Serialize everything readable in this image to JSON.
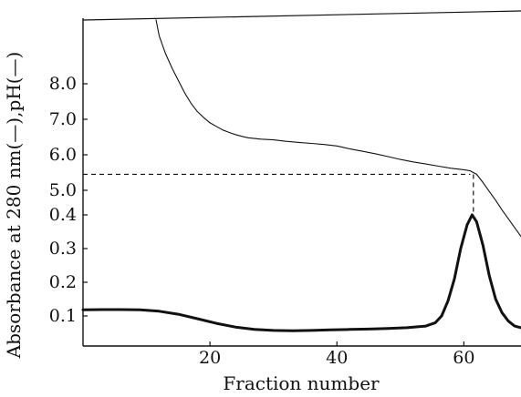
{
  "chart_data": {
    "type": "line",
    "xlabel": "Fraction number",
    "ylabel": "Absorbance at 280 nm(—),pH(—)",
    "xlim": [
      0,
      69
    ],
    "x_ticks": [
      20,
      40,
      60
    ],
    "ph_axis": {
      "ticks": [
        5.0,
        6.0,
        7.0,
        8.0
      ],
      "tick_labels": [
        "5.0",
        "6.0",
        "7.0",
        "8.0"
      ]
    },
    "absorbance_axis": {
      "ticks": [
        0.1,
        0.2,
        0.3,
        0.4
      ],
      "tick_labels": [
        "0.1",
        "0.2",
        "0.3",
        "0.4"
      ]
    },
    "series": [
      {
        "key": "ph",
        "axis": "ph",
        "style": "thin",
        "x": [
          11.5,
          12,
          13,
          14,
          15,
          16,
          17,
          18,
          19,
          20,
          21,
          22,
          23,
          24,
          25,
          26,
          28,
          30,
          32,
          34,
          36,
          38,
          40,
          42,
          44,
          46,
          48,
          50,
          52,
          54,
          56,
          58,
          60,
          61,
          62,
          63,
          64,
          65,
          66,
          67,
          68,
          69
        ],
        "y": [
          9.8,
          9.35,
          8.85,
          8.45,
          8.1,
          7.75,
          7.45,
          7.22,
          7.05,
          6.9,
          6.8,
          6.7,
          6.63,
          6.57,
          6.52,
          6.48,
          6.44,
          6.42,
          6.38,
          6.35,
          6.32,
          6.29,
          6.25,
          6.17,
          6.1,
          6.03,
          5.95,
          5.87,
          5.8,
          5.74,
          5.68,
          5.62,
          5.58,
          5.55,
          5.45,
          5.22,
          4.97,
          4.72,
          4.45,
          4.2,
          3.95,
          3.7
        ]
      },
      {
        "key": "absorbance",
        "axis": "absorbance",
        "style": "thick",
        "x": [
          0,
          3,
          6,
          9,
          12,
          15,
          18,
          21,
          24,
          27,
          30,
          33,
          36,
          39,
          42,
          45,
          48,
          51,
          54,
          55.5,
          56.5,
          57.5,
          58.5,
          59.5,
          60.5,
          61.3,
          62,
          63,
          64,
          65,
          66,
          67,
          68,
          69
        ],
        "y": [
          0.118,
          0.119,
          0.119,
          0.118,
          0.114,
          0.105,
          0.092,
          0.078,
          0.067,
          0.06,
          0.057,
          0.056,
          0.057,
          0.059,
          0.06,
          0.061,
          0.063,
          0.065,
          0.07,
          0.08,
          0.1,
          0.145,
          0.21,
          0.3,
          0.37,
          0.4,
          0.38,
          0.31,
          0.22,
          0.15,
          0.11,
          0.085,
          0.07,
          0.065
        ]
      }
    ],
    "reference_lines": [
      {
        "key": "horizontal",
        "style": "dashed",
        "x0": 0,
        "x1": 61,
        "ph": 5.45
      },
      {
        "key": "vertical",
        "style": "dashed",
        "x": 61.5,
        "absorbance_from": 0.4,
        "ph_to": 5.45
      }
    ],
    "colors": {
      "ink": "#111111",
      "background": "#ffffff"
    }
  }
}
